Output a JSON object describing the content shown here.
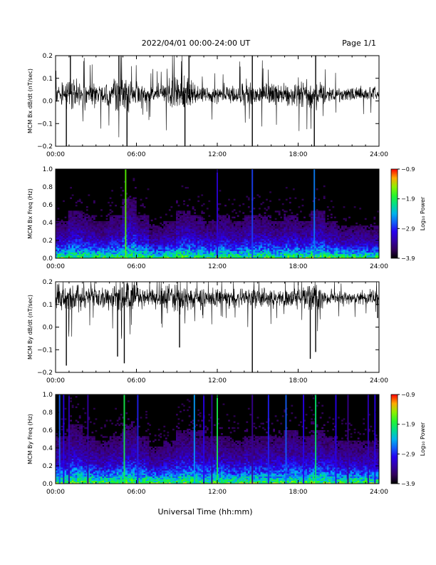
{
  "header": {
    "date_range": "2022/04/01  00:00-24:00 UT",
    "page": "Page 1/1"
  },
  "footer": {
    "xlabel": "Universal Time (hh:mm)"
  },
  "chart_data": [
    {
      "type": "line",
      "ylabel": "MCM Bx dB/dt (nT/sec)",
      "x_ticks": [
        "00:00",
        "06:00",
        "12:00",
        "18:00",
        "24:00"
      ],
      "xlim_hours": [
        0,
        24
      ],
      "ylim": [
        -0.2,
        0.2
      ],
      "y_ticks": [
        "-0.2",
        "-0.1",
        "0.0",
        "0.1",
        "0.2"
      ],
      "baseline": 0.03,
      "envelope": [
        {
          "hour": 0,
          "amp": 0.06
        },
        {
          "hour": 1,
          "amp": 0.09
        },
        {
          "hour": 2,
          "amp": 0.07
        },
        {
          "hour": 3,
          "amp": 0.06
        },
        {
          "hour": 4,
          "amp": 0.08
        },
        {
          "hour": 5,
          "amp": 0.12
        },
        {
          "hour": 6,
          "amp": 0.07
        },
        {
          "hour": 7,
          "amp": 0.05
        },
        {
          "hour": 8,
          "amp": 0.06
        },
        {
          "hour": 9,
          "amp": 0.1
        },
        {
          "hour": 10,
          "amp": 0.08
        },
        {
          "hour": 11,
          "amp": 0.05
        },
        {
          "hour": 12,
          "amp": 0.05
        },
        {
          "hour": 13,
          "amp": 0.05
        },
        {
          "hour": 14,
          "amp": 0.07
        },
        {
          "hour": 15,
          "amp": 0.07
        },
        {
          "hour": 16,
          "amp": 0.06
        },
        {
          "hour": 17,
          "amp": 0.06
        },
        {
          "hour": 18,
          "amp": 0.07
        },
        {
          "hour": 19,
          "amp": 0.08
        },
        {
          "hour": 20,
          "amp": 0.05
        },
        {
          "hour": 21,
          "amp": 0.04
        },
        {
          "hour": 22,
          "amp": 0.04
        },
        {
          "hour": 23,
          "amp": 0.04
        },
        {
          "hour": 24,
          "amp": 0.04
        }
      ],
      "spikes": [
        {
          "hour": 0.8,
          "y": -0.2
        },
        {
          "hour": 1.1,
          "y": 0.2
        },
        {
          "hour": 4.7,
          "y": 0.2
        },
        {
          "hour": 5.3,
          "y": -0.2
        },
        {
          "hour": 9.6,
          "y": -0.2
        },
        {
          "hour": 9.9,
          "y": 0.2
        },
        {
          "hour": 14.6,
          "y": -0.2
        },
        {
          "hour": 14.6,
          "y": 0.2
        },
        {
          "hour": 19.2,
          "y": -0.2
        },
        {
          "hour": 19.3,
          "y": 0.2
        }
      ]
    },
    {
      "type": "heatmap",
      "ylabel": "MCM Bx Freq (Hz)",
      "x_ticks": [
        "00:00",
        "06:00",
        "12:00",
        "18:00",
        "24:00"
      ],
      "xlim_hours": [
        0,
        24
      ],
      "ylim": [
        0,
        1
      ],
      "y_ticks": [
        "0.0",
        "0.2",
        "0.4",
        "0.6",
        "0.8",
        "1.0"
      ],
      "colorbar_label": "Log₁₀ Power",
      "colorbar_ticks": [
        "-0.9",
        "-1.9",
        "-2.9",
        "-3.9"
      ],
      "colorbar_range": [
        -3.9,
        -0.9
      ],
      "activity": [
        0.35,
        0.45,
        0.4,
        0.35,
        0.4,
        0.55,
        0.4,
        0.3,
        0.35,
        0.45,
        0.4,
        0.35,
        0.4,
        0.35,
        0.4,
        0.4,
        0.35,
        0.4,
        0.35,
        0.45,
        0.35,
        0.3,
        0.3,
        0.3,
        0.3
      ],
      "bright_lines": [
        {
          "hour": 5.2,
          "power": -1.6
        },
        {
          "hour": 14.6,
          "power": -2.8
        },
        {
          "hour": 19.2,
          "power": -2.6
        },
        {
          "hour": 12.0,
          "power": -3.1
        }
      ]
    },
    {
      "type": "line",
      "ylabel": "MCM By dB/dt (nT/sec)",
      "x_ticks": [
        "00:00",
        "06:00",
        "12:00",
        "18:00",
        "24:00"
      ],
      "xlim_hours": [
        0,
        24
      ],
      "ylim": [
        -0.2,
        0.2
      ],
      "y_ticks": [
        "-0.2",
        "-0.1",
        "0.0",
        "0.1",
        "0.2"
      ],
      "baseline": 0.13,
      "envelope": [
        {
          "hour": 0,
          "amp": 0.07
        },
        {
          "hour": 1,
          "amp": 0.09
        },
        {
          "hour": 2,
          "amp": 0.07
        },
        {
          "hour": 3,
          "amp": 0.06
        },
        {
          "hour": 4,
          "amp": 0.07
        },
        {
          "hour": 5,
          "amp": 0.1
        },
        {
          "hour": 6,
          "amp": 0.07
        },
        {
          "hour": 7,
          "amp": 0.05
        },
        {
          "hour": 8,
          "amp": 0.06
        },
        {
          "hour": 9,
          "amp": 0.09
        },
        {
          "hour": 10,
          "amp": 0.07
        },
        {
          "hour": 11,
          "amp": 0.05
        },
        {
          "hour": 12,
          "amp": 0.05
        },
        {
          "hour": 13,
          "amp": 0.05
        },
        {
          "hour": 14,
          "amp": 0.06
        },
        {
          "hour": 15,
          "amp": 0.06
        },
        {
          "hour": 16,
          "amp": 0.05
        },
        {
          "hour": 17,
          "amp": 0.05
        },
        {
          "hour": 18,
          "amp": 0.06
        },
        {
          "hour": 19,
          "amp": 0.08
        },
        {
          "hour": 20,
          "amp": 0.05
        },
        {
          "hour": 21,
          "amp": 0.04
        },
        {
          "hour": 22,
          "amp": 0.04
        },
        {
          "hour": 23,
          "amp": 0.04
        },
        {
          "hour": 24,
          "amp": 0.04
        }
      ],
      "spikes": [
        {
          "hour": 0.8,
          "y": -0.17
        },
        {
          "hour": 4.6,
          "y": -0.13
        },
        {
          "hour": 5.1,
          "y": -0.16
        },
        {
          "hour": 9.2,
          "y": -0.09
        },
        {
          "hour": 14.6,
          "y": -0.2
        },
        {
          "hour": 18.9,
          "y": -0.14
        },
        {
          "hour": 19.3,
          "y": -0.11
        },
        {
          "hour": 23.9,
          "y": 0.04
        }
      ]
    },
    {
      "type": "heatmap",
      "ylabel": "MCM By Freq (Hz)",
      "x_ticks": [
        "00:00",
        "06:00",
        "12:00",
        "18:00",
        "24:00"
      ],
      "xlim_hours": [
        0,
        24
      ],
      "ylim": [
        0,
        1
      ],
      "y_ticks": [
        "0.0",
        "0.2",
        "0.4",
        "0.6",
        "0.8",
        "1.0"
      ],
      "colorbar_label": "Log₁₀ Power",
      "colorbar_ticks": [
        "-0.9",
        "-1.9",
        "-2.9",
        "-3.9"
      ],
      "colorbar_range": [
        -3.9,
        -0.9
      ],
      "activity": [
        0.45,
        0.55,
        0.45,
        0.4,
        0.45,
        0.55,
        0.45,
        0.35,
        0.4,
        0.5,
        0.5,
        0.45,
        0.45,
        0.4,
        0.45,
        0.45,
        0.45,
        0.5,
        0.45,
        0.5,
        0.45,
        0.4,
        0.4,
        0.4,
        0.4
      ],
      "bright_lines": [
        {
          "hour": 0.3,
          "power": -2.7
        },
        {
          "hour": 0.6,
          "power": -3.0
        },
        {
          "hour": 1.0,
          "power": -3.2
        },
        {
          "hour": 2.4,
          "power": -3.3
        },
        {
          "hour": 5.1,
          "power": -1.9
        },
        {
          "hour": 6.1,
          "power": -2.9
        },
        {
          "hour": 10.3,
          "power": -2.5
        },
        {
          "hour": 11.0,
          "power": -3.0
        },
        {
          "hour": 11.6,
          "power": -3.3
        },
        {
          "hour": 12.0,
          "power": -1.9
        },
        {
          "hour": 14.6,
          "power": -3.4
        },
        {
          "hour": 15.8,
          "power": -2.9
        },
        {
          "hour": 17.1,
          "power": -2.7
        },
        {
          "hour": 18.4,
          "power": -3.0
        },
        {
          "hour": 19.3,
          "power": -2.0
        },
        {
          "hour": 20.8,
          "power": -3.0
        },
        {
          "hour": 21.7,
          "power": -3.4
        },
        {
          "hour": 23.2,
          "power": -3.2
        },
        {
          "hour": 23.7,
          "power": -3.0
        }
      ]
    }
  ]
}
